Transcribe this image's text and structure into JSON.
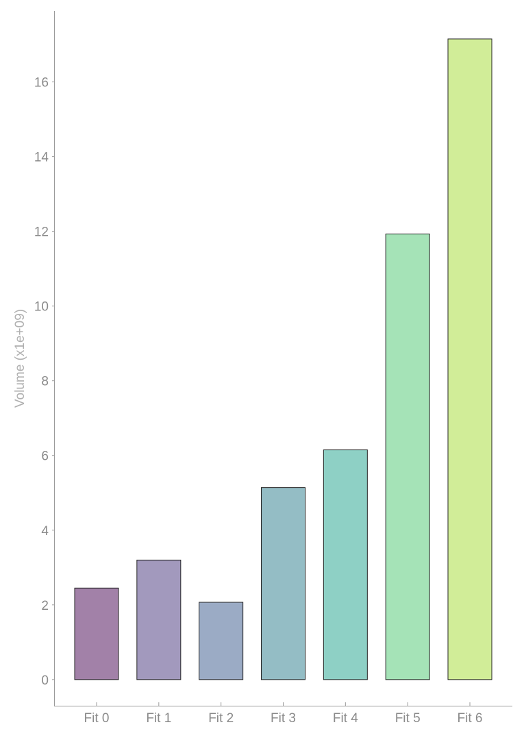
{
  "chart_data": {
    "type": "bar",
    "title": "",
    "xlabel": "",
    "ylabel": "Volume (x1e+09)",
    "categories": [
      "Fit 0",
      "Fit 1",
      "Fit 2",
      "Fit 3",
      "Fit 4",
      "Fit 5",
      "Fit 6"
    ],
    "values": [
      2.45,
      3.2,
      2.07,
      5.14,
      6.15,
      11.93,
      17.15
    ],
    "colors": [
      "#a281a8",
      "#a299bd",
      "#9babc5",
      "#94bdc5",
      "#8ed0c5",
      "#a5e3b7",
      "#d1ed98"
    ],
    "yticks": [
      0,
      2,
      4,
      6,
      8,
      10,
      12,
      14,
      16
    ],
    "ylim": [
      -0.7,
      17.9
    ],
    "grid": false,
    "legend": "none"
  }
}
